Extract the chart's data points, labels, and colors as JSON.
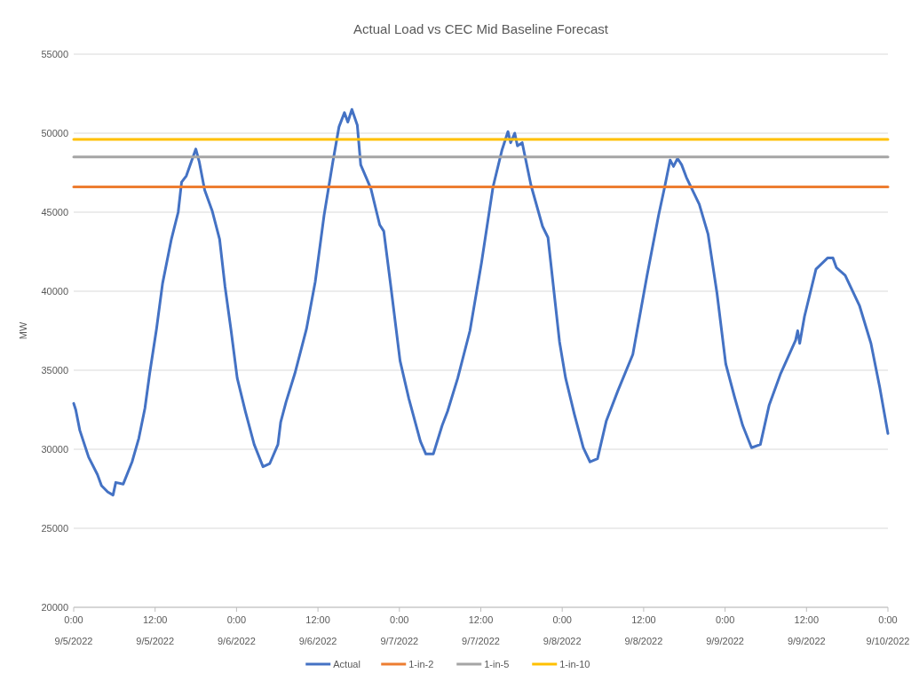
{
  "chart_data": {
    "type": "line",
    "title": "Actual Load vs CEC Mid Baseline Forecast",
    "ylabel": "MW",
    "xlim": [
      "2022-09-05T00:00",
      "2022-09-10T00:00"
    ],
    "ylim": [
      20000,
      55000
    ],
    "yticks": [
      20000,
      25000,
      30000,
      35000,
      40000,
      45000,
      50000,
      55000
    ],
    "xticks": [
      {
        "value": "2022-09-05T00:00",
        "label": "0:00\n9/5/2022"
      },
      {
        "value": "2022-09-05T12:00",
        "label": "12:00\n9/5/2022"
      },
      {
        "value": "2022-09-06T00:00",
        "label": "0:00\n9/6/2022"
      },
      {
        "value": "2022-09-06T12:00",
        "label": "12:00\n9/6/2022"
      },
      {
        "value": "2022-09-07T00:00",
        "label": "0:00\n9/7/2022"
      },
      {
        "value": "2022-09-07T12:00",
        "label": "12:00\n9/7/2022"
      },
      {
        "value": "2022-09-08T00:00",
        "label": "0:00\n9/8/2022"
      },
      {
        "value": "2022-09-08T12:00",
        "label": "12:00\n9/8/2022"
      },
      {
        "value": "2022-09-09T00:00",
        "label": "0:00\n9/9/2022"
      },
      {
        "value": "2022-09-09T12:00",
        "label": "12:00\n9/9/2022"
      },
      {
        "value": "2022-09-10T00:00",
        "label": "0:00\n9/10/2022"
      }
    ],
    "grid": "y",
    "legend": "bottom",
    "marker": "none",
    "line_style": "solid",
    "series": [
      {
        "name": "Actual",
        "color": "#4472c4",
        "x": [
          "2022-09-05T00:00",
          "2022-09-05T00:18",
          "2022-09-05T00:54",
          "2022-09-05T02:12",
          "2022-09-05T03:30",
          "2022-09-05T04:06",
          "2022-09-05T05:00",
          "2022-09-05T05:48",
          "2022-09-05T06:12",
          "2022-09-05T07:18",
          "2022-09-05T08:36",
          "2022-09-05T09:36",
          "2022-09-05T10:30",
          "2022-09-05T11:12",
          "2022-09-05T12:12",
          "2022-09-05T13:06",
          "2022-09-05T14:24",
          "2022-09-05T15:24",
          "2022-09-05T15:54",
          "2022-09-05T16:36",
          "2022-09-05T18:00",
          "2022-09-05T18:30",
          "2022-09-05T19:18",
          "2022-09-05T20:24",
          "2022-09-05T21:30",
          "2022-09-05T22:18",
          "2022-09-05T23:12",
          "2022-09-06T00:06",
          "2022-09-06T01:18",
          "2022-09-06T02:36",
          "2022-09-06T03:54",
          "2022-09-06T04:54",
          "2022-09-06T06:06",
          "2022-09-06T06:30",
          "2022-09-06T07:18",
          "2022-09-06T08:36",
          "2022-09-06T10:18",
          "2022-09-06T11:36",
          "2022-09-06T12:54",
          "2022-09-06T14:12",
          "2022-09-06T15:06",
          "2022-09-06T15:54",
          "2022-09-06T16:24",
          "2022-09-06T17:00",
          "2022-09-06T17:48",
          "2022-09-06T18:18",
          "2022-09-06T19:48",
          "2022-09-06T21:06",
          "2022-09-06T21:42",
          "2022-09-06T22:48",
          "2022-09-07T00:06",
          "2022-09-07T01:24",
          "2022-09-07T03:06",
          "2022-09-07T03:54",
          "2022-09-07T05:00",
          "2022-09-07T06:18",
          "2022-09-07T07:06",
          "2022-09-07T08:36",
          "2022-09-07T10:24",
          "2022-09-07T12:06",
          "2022-09-07T13:48",
          "2022-09-07T15:06",
          "2022-09-07T16:00",
          "2022-09-07T16:24",
          "2022-09-07T17:00",
          "2022-09-07T17:24",
          "2022-09-07T18:06",
          "2022-09-07T19:24",
          "2022-09-07T21:06",
          "2022-09-07T21:54",
          "2022-09-07T23:36",
          "2022-09-08T00:30",
          "2022-09-08T01:48",
          "2022-09-08T03:06",
          "2022-09-08T04:06",
          "2022-09-08T05:12",
          "2022-09-08T06:30",
          "2022-09-08T08:12",
          "2022-09-08T10:24",
          "2022-09-08T12:30",
          "2022-09-08T14:12",
          "2022-09-08T15:06",
          "2022-09-08T15:54",
          "2022-09-08T16:24",
          "2022-09-08T17:00",
          "2022-09-08T17:36",
          "2022-09-08T18:18",
          "2022-09-08T20:12",
          "2022-09-08T21:30",
          "2022-09-08T22:48",
          "2022-09-09T00:06",
          "2022-09-09T01:24",
          "2022-09-09T02:36",
          "2022-09-09T03:54",
          "2022-09-09T05:12",
          "2022-09-09T06:30",
          "2022-09-09T08:12",
          "2022-09-09T10:24",
          "2022-09-09T10:42",
          "2022-09-09T11:00",
          "2022-09-09T11:42",
          "2022-09-09T13:24",
          "2022-09-09T15:06",
          "2022-09-09T15:54",
          "2022-09-09T16:24",
          "2022-09-09T17:42",
          "2022-09-09T19:48",
          "2022-09-09T21:30",
          "2022-09-09T22:48",
          "2022-09-10T00:00"
        ],
        "values": [
          32900,
          32500,
          31200,
          29500,
          28400,
          27700,
          27300,
          27100,
          27900,
          27800,
          29200,
          30700,
          32600,
          34800,
          37600,
          40500,
          43300,
          45000,
          46900,
          47300,
          49000,
          48200,
          46400,
          45100,
          43300,
          40300,
          37500,
          34500,
          32400,
          30300,
          28900,
          29100,
          30300,
          31700,
          33000,
          34800,
          37600,
          40600,
          44800,
          48200,
          50400,
          51300,
          50700,
          51500,
          50500,
          48000,
          46500,
          44200,
          43800,
          40100,
          35600,
          33200,
          30500,
          29700,
          29700,
          31500,
          32400,
          34500,
          37500,
          41800,
          46600,
          48900,
          50100,
          49400,
          50000,
          49200,
          49400,
          46700,
          44100,
          43400,
          36800,
          34500,
          32200,
          30100,
          29200,
          29400,
          31800,
          33700,
          36000,
          41000,
          44800,
          46600,
          48300,
          47900,
          48400,
          48000,
          47200,
          45500,
          43600,
          39900,
          35400,
          33300,
          31500,
          30100,
          30300,
          32800,
          34800,
          36900,
          37500,
          36700,
          38400,
          41400,
          42100,
          42100,
          41500,
          41000,
          39100,
          36700,
          33900,
          31000
        ]
      },
      {
        "name": "1-in-2",
        "color": "#ed7d31",
        "x": [
          "2022-09-05T00:00",
          "2022-09-10T00:00"
        ],
        "values": [
          46600,
          46600
        ]
      },
      {
        "name": "1-in-5",
        "color": "#a5a5a5",
        "x": [
          "2022-09-05T00:00",
          "2022-09-10T00:00"
        ],
        "values": [
          48500,
          48500
        ]
      },
      {
        "name": "1-in-10",
        "color": "#ffc000",
        "x": [
          "2022-09-05T00:00",
          "2022-09-10T00:00"
        ],
        "values": [
          49600,
          49600
        ]
      }
    ]
  }
}
